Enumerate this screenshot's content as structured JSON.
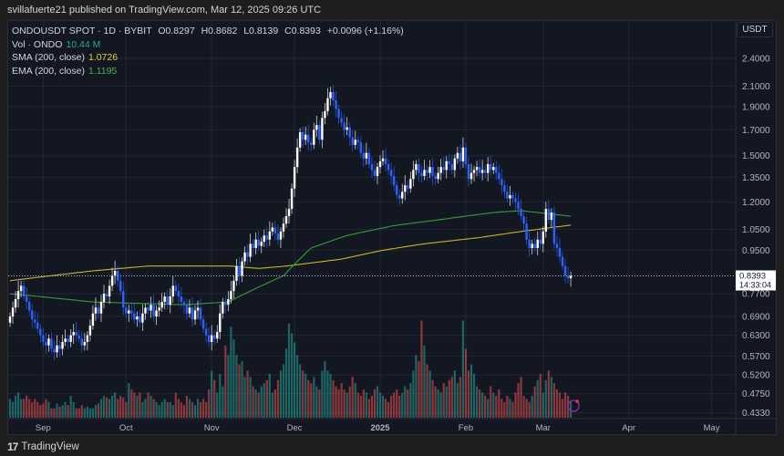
{
  "header": {
    "published": "svillafuerte21 published on TradingView.com, Mar 12, 2025 09:26 UTC"
  },
  "legend": {
    "symbol": "ONDOUSDT SPOT · 1D · BYBIT",
    "open": "O0.8297",
    "high": "H0.8682",
    "low": "L0.8139",
    "close": "C0.8393",
    "change": "+0.0096 (+1.16%)",
    "vol_label": "Vol · ONDO",
    "vol_value": "10.44 M",
    "sma_label": "SMA (200, close)",
    "sma_value": "1.0726",
    "ema_label": "EMA (200, close)",
    "ema_value": "1.1195"
  },
  "axis": {
    "currency": "USDT",
    "current_price": "0.8393",
    "countdown": "14:33:04"
  },
  "footer": {
    "brand": "TradingView",
    "logo": "17"
  },
  "colors": {
    "up": "#ffffff",
    "down": "#2962ff",
    "vol_up": "#26a69a",
    "vol_down": "#ef5350",
    "sma": "#c9b52a",
    "ema": "#3a9a3a",
    "bg": "#131722",
    "grid": "#222734"
  },
  "chart_data": {
    "type": "candlestick",
    "title": "ONDOUSDT SPOT · 1D · BYBIT",
    "scale": "log",
    "ylim": [
      0.433,
      2.45
    ],
    "start_date": "2024-08-20",
    "end_date": "2025-03-12",
    "y_ticks": [
      "2.4000",
      "2.1000",
      "1.9000",
      "1.7000",
      "1.5000",
      "1.3500",
      "1.2000",
      "1.0500",
      "0.9500",
      "0.7700",
      "0.6900",
      "0.6300",
      "0.5700",
      "0.5200",
      "0.4750",
      "0.4330"
    ],
    "x_ticks": [
      {
        "label": "Sep",
        "day": 12
      },
      {
        "label": "Oct",
        "day": 42
      },
      {
        "label": "Nov",
        "day": 73
      },
      {
        "label": "Dec",
        "day": 103
      },
      {
        "label": "2025",
        "day": 134
      },
      {
        "label": "Feb",
        "day": 165
      },
      {
        "label": "Mar",
        "day": 193
      },
      {
        "label": "Apr",
        "day": 224
      },
      {
        "label": "May",
        "day": 254
      }
    ],
    "closes": [
      0.69,
      0.72,
      0.75,
      0.78,
      0.8,
      0.76,
      0.74,
      0.71,
      0.68,
      0.67,
      0.65,
      0.63,
      0.61,
      0.6,
      0.62,
      0.59,
      0.58,
      0.6,
      0.59,
      0.61,
      0.62,
      0.61,
      0.63,
      0.64,
      0.63,
      0.62,
      0.6,
      0.61,
      0.63,
      0.66,
      0.7,
      0.72,
      0.7,
      0.74,
      0.77,
      0.76,
      0.8,
      0.84,
      0.86,
      0.82,
      0.78,
      0.72,
      0.7,
      0.71,
      0.7,
      0.68,
      0.69,
      0.67,
      0.7,
      0.72,
      0.71,
      0.73,
      0.69,
      0.71,
      0.72,
      0.74,
      0.76,
      0.73,
      0.76,
      0.8,
      0.78,
      0.76,
      0.74,
      0.73,
      0.7,
      0.72,
      0.68,
      0.71,
      0.72,
      0.68,
      0.65,
      0.63,
      0.61,
      0.63,
      0.62,
      0.64,
      0.7,
      0.74,
      0.73,
      0.75,
      0.78,
      0.82,
      0.88,
      0.84,
      0.9,
      0.94,
      0.92,
      0.98,
      0.96,
      1.0,
      0.97,
      0.99,
      1.02,
      1.0,
      1.04,
      1.06,
      1.03,
      1.0,
      1.04,
      1.08,
      1.12,
      1.16,
      1.28,
      1.42,
      1.56,
      1.68,
      1.62,
      1.66,
      1.6,
      1.58,
      1.7,
      1.74,
      1.62,
      1.8,
      1.86,
      1.98,
      2.04,
      1.96,
      1.88,
      1.8,
      1.76,
      1.7,
      1.72,
      1.64,
      1.58,
      1.62,
      1.6,
      1.52,
      1.48,
      1.52,
      1.44,
      1.4,
      1.36,
      1.42,
      1.46,
      1.48,
      1.44,
      1.4,
      1.36,
      1.3,
      1.24,
      1.22,
      1.26,
      1.3,
      1.28,
      1.34,
      1.4,
      1.44,
      1.38,
      1.36,
      1.4,
      1.38,
      1.42,
      1.36,
      1.34,
      1.38,
      1.42,
      1.4,
      1.46,
      1.44,
      1.4,
      1.48,
      1.52,
      1.46,
      1.56,
      1.44,
      1.34,
      1.38,
      1.4,
      1.42,
      1.38,
      1.4,
      1.38,
      1.44,
      1.4,
      1.42,
      1.38,
      1.34,
      1.3,
      1.26,
      1.22,
      1.24,
      1.22,
      1.2,
      1.16,
      1.12,
      1.08,
      1.0,
      0.96,
      0.98,
      0.96,
      1.0,
      0.98,
      1.04,
      1.16,
      1.1,
      1.14,
      0.98,
      0.96,
      0.92,
      0.88,
      0.84,
      0.8297,
      0.8393
    ],
    "volumes_m": [
      12,
      10,
      14,
      16,
      12,
      12,
      14,
      12,
      10,
      12,
      10,
      8,
      9,
      12,
      10,
      6,
      6,
      9,
      7,
      8,
      10,
      8,
      14,
      10,
      6,
      6,
      8,
      6,
      7,
      6,
      6,
      8,
      9,
      12,
      14,
      13,
      12,
      14,
      16,
      12,
      14,
      13,
      10,
      22,
      18,
      16,
      14,
      16,
      10,
      12,
      16,
      14,
      12,
      10,
      8,
      10,
      12,
      10,
      10,
      8,
      16,
      12,
      10,
      8,
      14,
      12,
      10,
      8,
      12,
      10,
      12,
      10,
      18,
      30,
      24,
      16,
      28,
      20,
      46,
      40,
      58,
      50,
      40,
      34,
      36,
      26,
      30,
      26,
      20,
      18,
      16,
      20,
      22,
      24,
      28,
      16,
      18,
      24,
      30,
      34,
      44,
      60,
      54,
      48,
      40,
      34,
      30,
      28,
      24,
      22,
      26,
      20,
      18,
      30,
      36,
      30,
      28,
      24,
      20,
      18,
      22,
      18,
      16,
      20,
      26,
      22,
      16,
      14,
      18,
      16,
      12,
      14,
      18,
      20,
      16,
      14,
      12,
      10,
      14,
      16,
      18,
      14,
      16,
      20,
      18,
      22,
      30,
      40,
      36,
      62,
      46,
      34,
      30,
      24,
      20,
      18,
      16,
      22,
      20,
      24,
      26,
      30,
      22,
      26,
      62,
      44,
      30,
      34,
      28,
      20,
      18,
      16,
      14,
      12,
      20,
      16,
      14,
      18,
      12,
      10,
      14,
      12,
      10,
      16,
      22,
      26,
      14,
      12,
      10,
      14,
      20,
      24,
      28,
      16,
      24,
      30,
      26,
      22,
      18,
      16,
      12,
      16,
      14,
      10.44
    ],
    "sma_200": [
      [
        0,
        0.82
      ],
      [
        30,
        0.86
      ],
      [
        50,
        0.88
      ],
      [
        80,
        0.88
      ],
      [
        90,
        0.87
      ],
      [
        100,
        0.88
      ],
      [
        120,
        0.91
      ],
      [
        135,
        0.95
      ],
      [
        150,
        0.98
      ],
      [
        170,
        1.01
      ],
      [
        185,
        1.04
      ],
      [
        203,
        1.0726
      ]
    ],
    "ema_200": [
      [
        0,
        0.77
      ],
      [
        30,
        0.74
      ],
      [
        63,
        0.73
      ],
      [
        79,
        0.74
      ],
      [
        89,
        0.79
      ],
      [
        99,
        0.84
      ],
      [
        109,
        0.96
      ],
      [
        122,
        1.02
      ],
      [
        139,
        1.07
      ],
      [
        155,
        1.1
      ],
      [
        175,
        1.14
      ],
      [
        185,
        1.15
      ],
      [
        203,
        1.1195
      ]
    ]
  }
}
